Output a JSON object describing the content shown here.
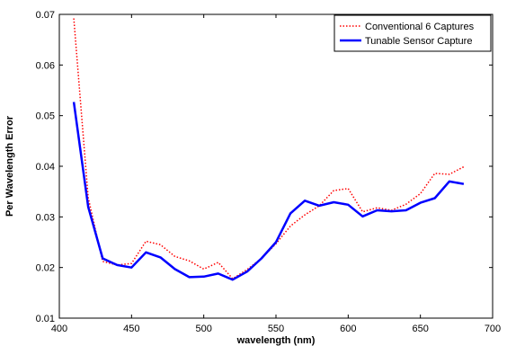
{
  "chart_data": {
    "type": "line",
    "title": "",
    "xlabel": "wavelength (nm)",
    "ylabel": "Per Wavelength Error",
    "xlim": [
      400,
      700
    ],
    "ylim": [
      0.01,
      0.07
    ],
    "x_ticks": [
      400,
      450,
      500,
      550,
      600,
      650,
      700
    ],
    "x_tick_labels": [
      "400",
      "450",
      "500",
      "550",
      "600",
      "650",
      "700"
    ],
    "y_ticks": [
      0.01,
      0.02,
      0.03,
      0.04,
      0.05,
      0.06,
      0.07
    ],
    "y_tick_labels": [
      "0.01",
      "0.02",
      "0.03",
      "0.04",
      "0.05",
      "0.06",
      "0.07"
    ],
    "grid": false,
    "legend_position": "top-right",
    "x": [
      410,
      420,
      430,
      440,
      450,
      460,
      470,
      480,
      490,
      500,
      510,
      520,
      530,
      540,
      550,
      560,
      570,
      580,
      590,
      600,
      610,
      620,
      630,
      640,
      650,
      660,
      670,
      680
    ],
    "series": [
      {
        "name": "Conventional 6 Captures",
        "color": "#ff0000",
        "style": "dotted",
        "values": [
          0.0692,
          0.0338,
          0.0212,
          0.0205,
          0.0208,
          0.0252,
          0.0245,
          0.0222,
          0.0213,
          0.0197,
          0.021,
          0.0178,
          0.0196,
          0.0218,
          0.0247,
          0.0282,
          0.0304,
          0.0322,
          0.0352,
          0.0356,
          0.031,
          0.0318,
          0.0313,
          0.0325,
          0.0346,
          0.0386,
          0.0384,
          0.0399
        ]
      },
      {
        "name": "Tunable Sensor Capture",
        "color": "#0000ff",
        "style": "solid",
        "values": [
          0.0527,
          0.032,
          0.0218,
          0.0205,
          0.02,
          0.023,
          0.022,
          0.0197,
          0.0181,
          0.0182,
          0.0188,
          0.0176,
          0.0192,
          0.0218,
          0.025,
          0.0307,
          0.0332,
          0.0322,
          0.0329,
          0.0324,
          0.0301,
          0.0313,
          0.0311,
          0.0313,
          0.0328,
          0.0337,
          0.037,
          0.0365
        ]
      }
    ]
  }
}
